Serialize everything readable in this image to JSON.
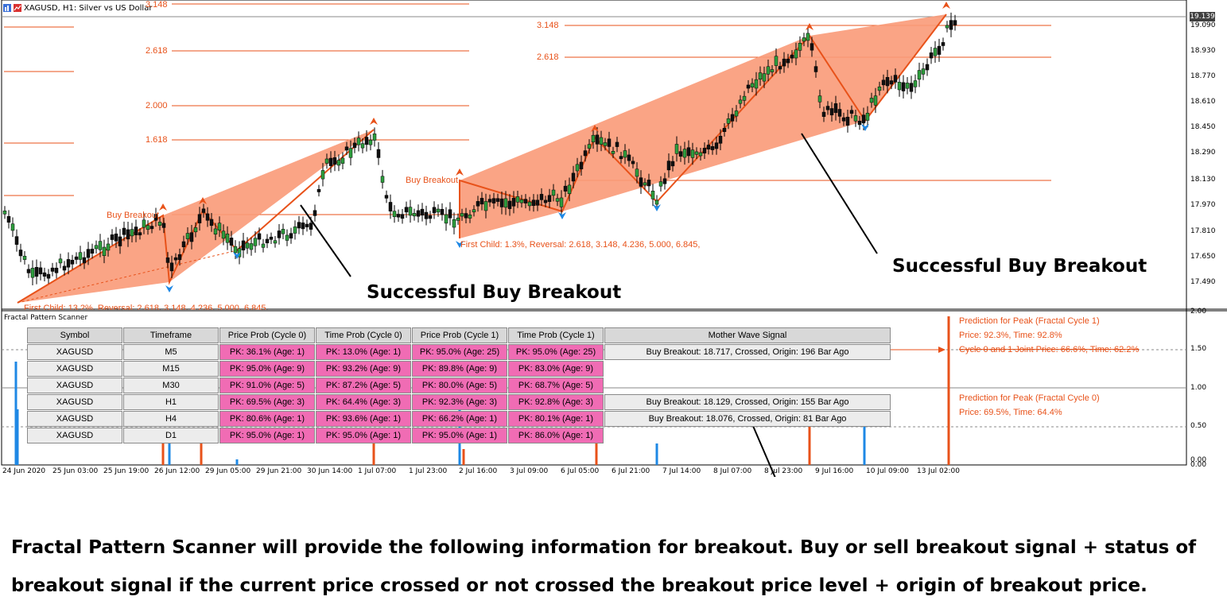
{
  "window": {
    "title": "XAGUSD, H1:  Silver vs US Dollar",
    "current_price": "19.139"
  },
  "colors": {
    "channel": "#fa9a78",
    "orange": "#e8521a",
    "pink": "#f06cb4",
    "blue": "#1e88e5"
  },
  "price_axis": [
    "19.090",
    "18.930",
    "18.770",
    "18.610",
    "18.450",
    "18.290",
    "18.130",
    "17.970",
    "17.810",
    "17.650",
    "17.490"
  ],
  "fib_left": [
    "3.148",
    "2.618",
    "2.000",
    "1.618"
  ],
  "fib_right": [
    "3.148",
    "2.618"
  ],
  "annotations": {
    "buy_breakout_1": "Buy Breakout",
    "buy_breakout_2": "Buy Breakout",
    "first_child": "First Child: 1.3%, Reversal: 2.618, 3.148, 4.236, 5.000, 6.845,",
    "first_child_old": "First Child: 13.2%, Reversal: 2.618, 3.148, 4.236, 5.000, 6.845,",
    "success_1": "Successful Buy Breakout",
    "success_2": "Successful Buy Breakout"
  },
  "panel": {
    "title": "Fractal Pattern Scanner",
    "axis": [
      "2.00",
      "1.50",
      "1.00",
      "0.50",
      "0.00",
      "0.00"
    ],
    "headers": [
      "Symbol",
      "Timeframe",
      "Price Prob (Cycle 0)",
      "Time Prob (Cycle 0)",
      "Price Prob (Cycle 1)",
      "Time Prob (Cycle 1)",
      "Mother Wave Signal"
    ],
    "rows": [
      {
        "symbol": "XAGUSD",
        "tf": "M5",
        "pp0": "PK: 36.1%  (Age: 1)",
        "tp0": "PK: 13.0% (Age: 1)",
        "pp1": "PK: 95.0% (Age: 25)",
        "tp1": "PK: 95.0% (Age: 25)",
        "signal": "Buy Breakout: 18.717, Crossed, Origin: 196 Bar Ago"
      },
      {
        "symbol": "XAGUSD",
        "tf": "M15",
        "pp0": "PK: 95.0% (Age: 9)",
        "tp0": "PK: 93.2% (Age: 9)",
        "pp1": "PK: 89.8% (Age: 9)",
        "tp1": "PK: 83.0% (Age: 9)",
        "signal": ""
      },
      {
        "symbol": "XAGUSD",
        "tf": "M30",
        "pp0": "PK: 91.0% (Age: 5)",
        "tp0": "PK: 87.2% (Age: 5)",
        "pp1": "PK: 80.0% (Age: 5)",
        "tp1": "PK: 68.7% (Age: 5)",
        "signal": ""
      },
      {
        "symbol": "XAGUSD",
        "tf": "H1",
        "pp0": "PK: 69.5% (Age: 3)",
        "tp0": "PK: 64.4% (Age: 3)",
        "pp1": "PK: 92.3% (Age: 3)",
        "tp1": "PK: 92.8% (Age: 3)",
        "signal": "Buy Breakout: 18.129, Crossed, Origin: 155 Bar Ago"
      },
      {
        "symbol": "XAGUSD",
        "tf": "H4",
        "pp0": "PK: 80.6% (Age: 1)",
        "tp0": "PK: 93.6% (Age: 1)",
        "pp1": "PK: 66.2% (Age: 1)",
        "tp1": "PK: 80.1% (Age: 1)",
        "signal": "Buy Breakout: 18.076, Crossed, Origin: 81 Bar Ago"
      },
      {
        "symbol": "XAGUSD",
        "tf": "D1",
        "pp0": "PK: 95.0%  (Age: 1)",
        "tp0": "PK: 95.0% (Age: 1)",
        "pp1": "PK: 95.0% (Age: 1)",
        "tp1": "PK: 86.0% (Age: 1)",
        "signal": ""
      }
    ],
    "pred1_title": "Prediction for Peak (Fractal Cycle 1)",
    "pred1_values": "Price: 92.3%, Time: 92.8%",
    "pred1_joint": "Cycle 0 and 1 Joint Price: 66.6%, Time: 62.2%",
    "pred0_title": "Prediction for Peak (Fractal Cycle 0)",
    "pred0_values": "Price: 69.5%, Time: 64.4%"
  },
  "dates": [
    "24 Jun 2020",
    "25 Jun 03:00",
    "25 Jun 19:00",
    "26 Jun 12:00",
    "29 Jun 05:00",
    "29 Jun 21:00",
    "30 Jun 14:00",
    "1 Jul 07:00",
    "1 Jul 23:00",
    "2 Jul 16:00",
    "3 Jul 09:00",
    "6 Jul 05:00",
    "6 Jul 21:00",
    "7 Jul 14:00",
    "8 Jul 07:00",
    "8 Jul 23:00",
    "9 Jul 16:00",
    "10 Jul 09:00",
    "13 Jul 02:00"
  ],
  "caption": {
    "line1": "Fractal Pattern Scanner will provide the following information for breakout. Buy or sell breakout signal + status of",
    "line2": "breakout signal if the current price crossed or not crossed the breakout price level + origin of breakout price."
  }
}
